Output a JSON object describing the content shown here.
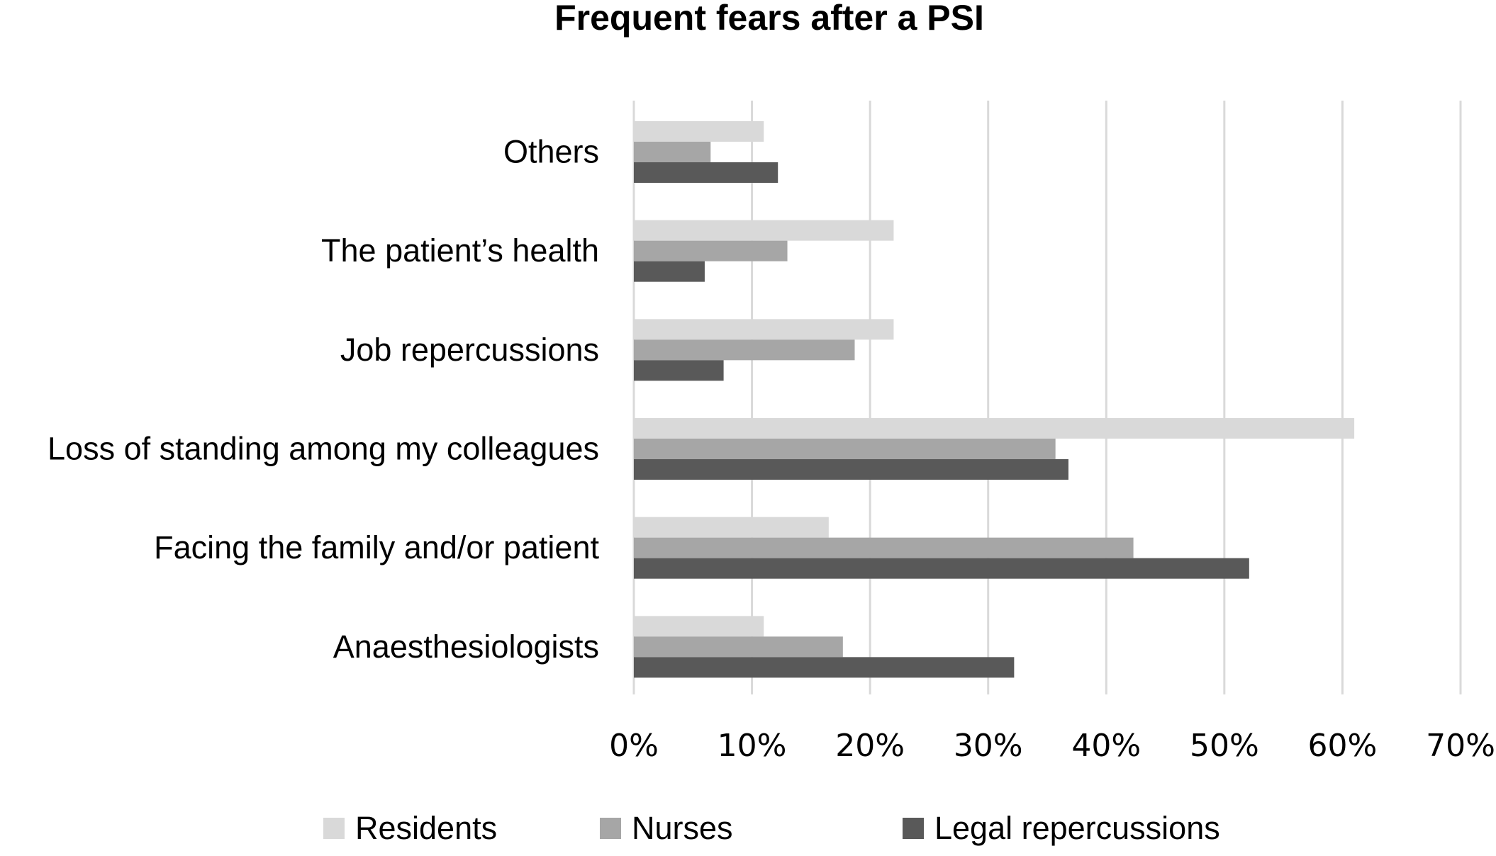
{
  "chart_data": {
    "type": "bar",
    "orientation": "horizontal",
    "title": "Frequent fears after a PSI",
    "xlabel": "",
    "ylabel": "",
    "xlim": [
      0,
      70
    ],
    "x_ticks": [
      "0%",
      "10%",
      "20%",
      "30%",
      "40%",
      "50%",
      "60%",
      "70%"
    ],
    "grid": "vertical",
    "legend_position": "bottom",
    "categories": [
      "Others",
      "The patient’s health",
      "Job repercussions",
      "Loss of standing among my colleagues",
      "Facing the family and/or patient",
      "Anaesthesiologists"
    ],
    "series": [
      {
        "name": "Residents",
        "color": "#d9d9d9",
        "values": [
          11,
          22,
          22,
          61,
          16.5,
          11
        ]
      },
      {
        "name": "Nurses",
        "color": "#a6a6a6",
        "values": [
          6.5,
          13,
          18.7,
          35.7,
          42.3,
          17.7
        ]
      },
      {
        "name": "Legal repercussions",
        "color": "#595959",
        "values": [
          12.2,
          6,
          7.6,
          36.8,
          52.1,
          32.2
        ]
      }
    ]
  }
}
